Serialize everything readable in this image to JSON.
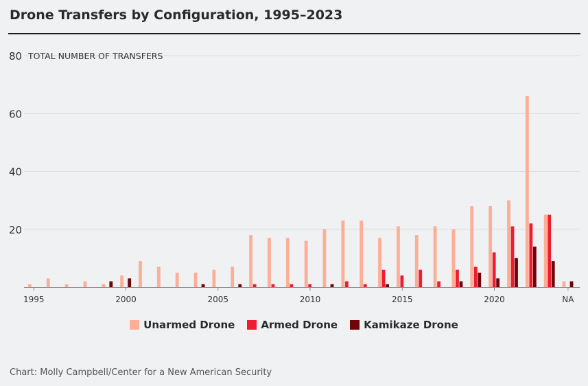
{
  "title": "Drone Transfers by Configuration, 1995–2023",
  "credit": "Chart: Molly Campbell/Center for a New American Security",
  "colors": {
    "unarmed": "#fcae97",
    "armed": "#ee1d2f",
    "kamikaze": "#6e0509",
    "grid": "#d9dcdf",
    "axis": "#8a8a8a"
  },
  "chart_data": {
    "type": "bar",
    "ylabel": "TOTAL NUMBER OF TRANSFERS",
    "ylim": [
      0,
      80
    ],
    "yticks": [
      20,
      40,
      60,
      80
    ],
    "legend_position": "bottom-center",
    "grid": true,
    "categories": [
      "1995",
      "1996",
      "1997",
      "1998",
      "1999",
      "2000",
      "2001",
      "2002",
      "2003",
      "2004",
      "2005",
      "2006",
      "2007",
      "2008",
      "2009",
      "2010",
      "2011",
      "2012",
      "2013",
      "2014",
      "2015",
      "2016",
      "2017",
      "2018",
      "2019",
      "2020",
      "2021",
      "2022",
      "2023",
      "NA"
    ],
    "xtick_labels": [
      {
        "index": 0,
        "label": "1995"
      },
      {
        "index": 5,
        "label": "2000"
      },
      {
        "index": 10,
        "label": "2005"
      },
      {
        "index": 15,
        "label": "2010"
      },
      {
        "index": 20,
        "label": "2015"
      },
      {
        "index": 25,
        "label": "2020"
      },
      {
        "index": 29,
        "label": "NA"
      }
    ],
    "series": [
      {
        "name": "Unarmed Drone",
        "key": "unarmed",
        "values": [
          1,
          3,
          1,
          2,
          1,
          4,
          9,
          7,
          5,
          5,
          6,
          7,
          18,
          17,
          17,
          16,
          20,
          23,
          23,
          17,
          21,
          18,
          21,
          20,
          28,
          28,
          30,
          66,
          25,
          2
        ]
      },
      {
        "name": "Armed Drone",
        "key": "armed",
        "values": [
          0,
          0,
          0,
          0,
          0,
          0,
          0,
          0,
          0,
          0,
          0,
          0,
          1,
          1,
          1,
          1,
          0,
          2,
          1,
          6,
          4,
          6,
          2,
          6,
          7,
          12,
          21,
          22,
          25,
          0
        ]
      },
      {
        "name": "Kamikaze Drone",
        "key": "kamikaze",
        "values": [
          0,
          0,
          0,
          0,
          2,
          3,
          0,
          0,
          0,
          1,
          0,
          1,
          0,
          0,
          0,
          0,
          1,
          0,
          0,
          1,
          0,
          0,
          0,
          2,
          5,
          3,
          10,
          14,
          9,
          2
        ]
      }
    ]
  }
}
